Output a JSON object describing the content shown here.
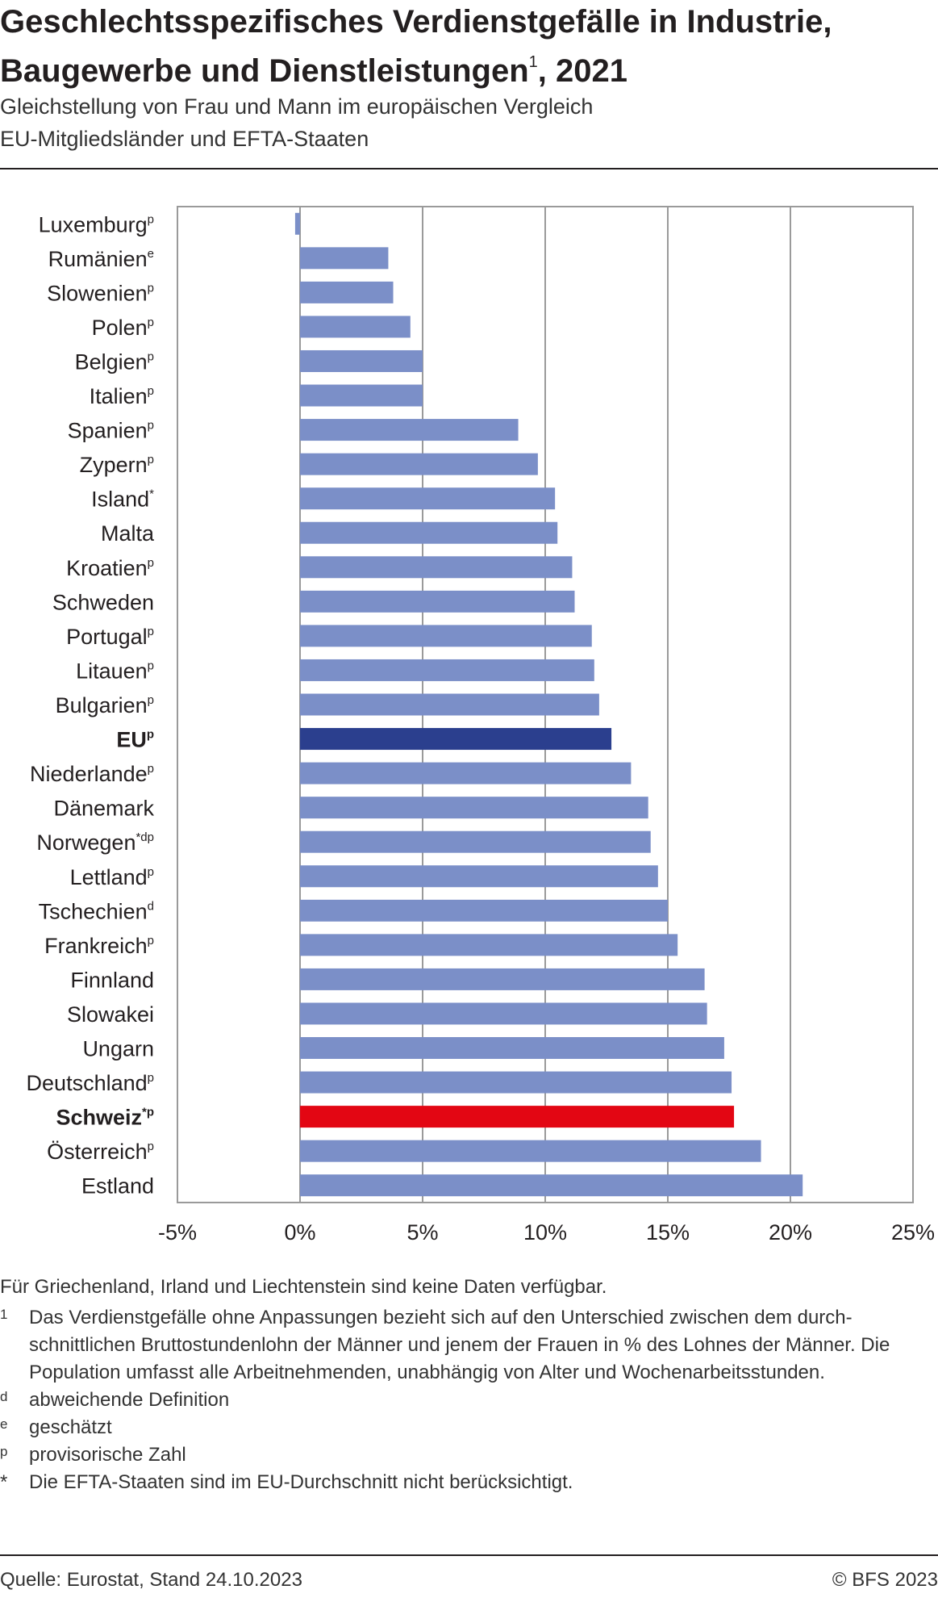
{
  "header": {
    "title_line1": "Geschlechtsspezifisches Verdienstgefälle in Industrie,",
    "title_line2": "Baugewerbe und Dienstleistungen",
    "title_sup": "1",
    "title_line2_end": ", 2021",
    "subtitle_line1": "Gleichstellung von Frau und Mann im europäischen Vergleich",
    "subtitle_line2": "EU-Mitgliedsländer und EFTA-Staaten"
  },
  "colors": {
    "bar_default": "#7b8fc8",
    "bar_eu": "#2b3f8e",
    "bar_switzerland": "#e30613",
    "grid": "#9a9a9a",
    "text": "#231f20"
  },
  "chart_data": {
    "type": "bar",
    "orientation": "horizontal",
    "xlim": [
      -5,
      25
    ],
    "xticks": [
      "-5%",
      "0%",
      "5%",
      "10%",
      "15%",
      "20%",
      "25%"
    ],
    "xtick_values": [
      -5,
      0,
      5,
      10,
      15,
      20,
      25
    ],
    "grid": true,
    "categories": [
      {
        "name": "Luxemburg",
        "sup": "p",
        "value": -0.2,
        "highlight": "none"
      },
      {
        "name": "Rumänien",
        "sup": "e",
        "value": 3.6,
        "highlight": "none"
      },
      {
        "name": "Slowenien",
        "sup": "p",
        "value": 3.8,
        "highlight": "none"
      },
      {
        "name": "Polen",
        "sup": "p",
        "value": 4.5,
        "highlight": "none"
      },
      {
        "name": "Belgien",
        "sup": "p",
        "value": 5.0,
        "highlight": "none"
      },
      {
        "name": "Italien",
        "sup": "p",
        "value": 5.0,
        "highlight": "none"
      },
      {
        "name": "Spanien",
        "sup": "p",
        "value": 8.9,
        "highlight": "none"
      },
      {
        "name": "Zypern",
        "sup": "p",
        "value": 9.7,
        "highlight": "none"
      },
      {
        "name": "Island",
        "sup": "*",
        "value": 10.4,
        "highlight": "none"
      },
      {
        "name": "Malta",
        "sup": "",
        "value": 10.5,
        "highlight": "none"
      },
      {
        "name": "Kroatien",
        "sup": "p",
        "value": 11.1,
        "highlight": "none"
      },
      {
        "name": "Schweden",
        "sup": "",
        "value": 11.2,
        "highlight": "none"
      },
      {
        "name": "Portugal",
        "sup": "p",
        "value": 11.9,
        "highlight": "none"
      },
      {
        "name": "Litauen",
        "sup": "p",
        "value": 12.0,
        "highlight": "none"
      },
      {
        "name": "Bulgarien",
        "sup": "p",
        "value": 12.2,
        "highlight": "none"
      },
      {
        "name": "EU",
        "sup": "p",
        "value": 12.7,
        "highlight": "eu"
      },
      {
        "name": "Niederlande",
        "sup": "p",
        "value": 13.5,
        "highlight": "none"
      },
      {
        "name": "Dänemark",
        "sup": "",
        "value": 14.2,
        "highlight": "none"
      },
      {
        "name": "Norwegen",
        "sup": "*dp",
        "value": 14.3,
        "highlight": "none"
      },
      {
        "name": "Lettland",
        "sup": "p",
        "value": 14.6,
        "highlight": "none"
      },
      {
        "name": "Tschechien",
        "sup": "d",
        "value": 15.0,
        "highlight": "none"
      },
      {
        "name": "Frankreich",
        "sup": "p",
        "value": 15.4,
        "highlight": "none"
      },
      {
        "name": "Finnland",
        "sup": "",
        "value": 16.5,
        "highlight": "none"
      },
      {
        "name": "Slowakei",
        "sup": "",
        "value": 16.6,
        "highlight": "none"
      },
      {
        "name": "Ungarn",
        "sup": "",
        "value": 17.3,
        "highlight": "none"
      },
      {
        "name": "Deutschland",
        "sup": "p",
        "value": 17.6,
        "highlight": "none"
      },
      {
        "name": "Schweiz",
        "sup": "*p",
        "value": 17.7,
        "highlight": "ch"
      },
      {
        "name": "Österreich",
        "sup": "p",
        "value": 18.8,
        "highlight": "none"
      },
      {
        "name": "Estland",
        "sup": "",
        "value": 20.5,
        "highlight": "none"
      }
    ]
  },
  "notes": {
    "no_data": "Für Griechenland, Irland und Liechtenstein sind keine Daten verfügbar.",
    "items": [
      {
        "mark": "1",
        "text": "Das Verdienstgefälle ohne Anpassungen bezieht sich auf den Unterschied zwischen dem durch­schnittlichen Bruttostundenlohn der Männer und jenem der Frauen in % des Lohnes der Männer. Die Population umfasst alle Arbeitnehmenden, unabhängig von Alter und Wochenarbeitsstunden."
      },
      {
        "mark": "d",
        "text": "abweichende Definition"
      },
      {
        "mark": "e",
        "text": "geschätzt"
      },
      {
        "mark": "p",
        "text": "provisorische Zahl"
      },
      {
        "mark": "*",
        "text": "Die EFTA-Staaten sind im EU-Durchschnitt nicht berücksichtigt."
      }
    ]
  },
  "footer": {
    "source": "Quelle: Eurostat, Stand 24.10.2023",
    "copyright": "© BFS 2023"
  }
}
